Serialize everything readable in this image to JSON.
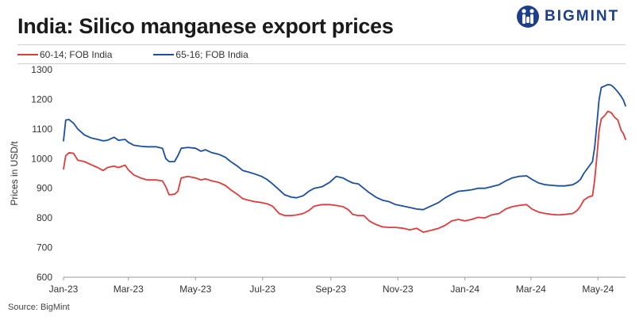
{
  "header": {
    "title": "India: Silico manganese export prices"
  },
  "logo": {
    "text": "BIGMINT",
    "color": "#1d3f8a"
  },
  "source": "Source: BigMint",
  "chart_data": {
    "type": "line",
    "title": "India: Silico manganese export prices",
    "xlabel": "",
    "ylabel": "Prices in USD/t",
    "ylim": [
      600,
      1300
    ],
    "yticks": [
      600,
      700,
      800,
      900,
      1000,
      1100,
      1200,
      1300
    ],
    "xlim": [
      "2023-01-01",
      "2024-05-26"
    ],
    "xticks": [
      {
        "date": "2023-01-01",
        "label": "Jan-23"
      },
      {
        "date": "2023-03-01",
        "label": "Mar-23"
      },
      {
        "date": "2023-05-01",
        "label": "May-23"
      },
      {
        "date": "2023-07-01",
        "label": "Jul-23"
      },
      {
        "date": "2023-09-01",
        "label": "Sep-23"
      },
      {
        "date": "2023-11-01",
        "label": "Nov-23"
      },
      {
        "date": "2024-01-01",
        "label": "Jan-24"
      },
      {
        "date": "2024-03-01",
        "label": "Mar-24"
      },
      {
        "date": "2024-05-01",
        "label": "May-24"
      }
    ],
    "grid": false,
    "legend_position": "top-left",
    "series": [
      {
        "name": "60-14; FOB India",
        "color": "#e03c3c",
        "points": [
          [
            "2023-01-01",
            965
          ],
          [
            "2023-01-03",
            1010
          ],
          [
            "2023-01-06",
            1020
          ],
          [
            "2023-01-10",
            1018
          ],
          [
            "2023-01-14",
            995
          ],
          [
            "2023-01-20",
            990
          ],
          [
            "2023-01-26",
            980
          ],
          [
            "2023-02-01",
            970
          ],
          [
            "2023-02-06",
            960
          ],
          [
            "2023-02-10",
            970
          ],
          [
            "2023-02-16",
            975
          ],
          [
            "2023-02-20",
            970
          ],
          [
            "2023-02-26",
            978
          ],
          [
            "2023-03-01",
            962
          ],
          [
            "2023-03-06",
            945
          ],
          [
            "2023-03-12",
            935
          ],
          [
            "2023-03-18",
            928
          ],
          [
            "2023-03-26",
            928
          ],
          [
            "2023-04-01",
            925
          ],
          [
            "2023-04-04",
            905
          ],
          [
            "2023-04-07",
            878
          ],
          [
            "2023-04-12",
            880
          ],
          [
            "2023-04-15",
            890
          ],
          [
            "2023-04-18",
            935
          ],
          [
            "2023-04-24",
            940
          ],
          [
            "2023-05-01",
            935
          ],
          [
            "2023-05-06",
            928
          ],
          [
            "2023-05-10",
            932
          ],
          [
            "2023-05-16",
            925
          ],
          [
            "2023-05-22",
            920
          ],
          [
            "2023-05-28",
            910
          ],
          [
            "2023-06-02",
            895
          ],
          [
            "2023-06-08",
            880
          ],
          [
            "2023-06-13",
            865
          ],
          [
            "2023-06-18",
            860
          ],
          [
            "2023-06-24",
            855
          ],
          [
            "2023-06-30",
            852
          ],
          [
            "2023-07-05",
            848
          ],
          [
            "2023-07-10",
            840
          ],
          [
            "2023-07-16",
            815
          ],
          [
            "2023-07-21",
            808
          ],
          [
            "2023-07-27",
            808
          ],
          [
            "2023-08-01",
            810
          ],
          [
            "2023-08-07",
            815
          ],
          [
            "2023-08-12",
            825
          ],
          [
            "2023-08-17",
            840
          ],
          [
            "2023-08-24",
            845
          ],
          [
            "2023-08-31",
            845
          ],
          [
            "2023-09-06",
            842
          ],
          [
            "2023-09-12",
            838
          ],
          [
            "2023-09-17",
            828
          ],
          [
            "2023-09-21",
            812
          ],
          [
            "2023-09-26",
            808
          ],
          [
            "2023-10-01",
            808
          ],
          [
            "2023-10-06",
            790
          ],
          [
            "2023-10-12",
            778
          ],
          [
            "2023-10-18",
            770
          ],
          [
            "2023-10-24",
            768
          ],
          [
            "2023-10-30",
            768
          ],
          [
            "2023-11-06",
            765
          ],
          [
            "2023-11-12",
            760
          ],
          [
            "2023-11-18",
            765
          ],
          [
            "2023-11-24",
            752
          ],
          [
            "2023-12-01",
            758
          ],
          [
            "2023-12-08",
            765
          ],
          [
            "2023-12-14",
            775
          ],
          [
            "2023-12-20",
            790
          ],
          [
            "2023-12-26",
            795
          ],
          [
            "2024-01-01",
            790
          ],
          [
            "2024-01-07",
            795
          ],
          [
            "2024-01-13",
            802
          ],
          [
            "2024-01-19",
            800
          ],
          [
            "2024-01-25",
            810
          ],
          [
            "2024-02-01",
            815
          ],
          [
            "2024-02-07",
            830
          ],
          [
            "2024-02-13",
            838
          ],
          [
            "2024-02-19",
            842
          ],
          [
            "2024-02-26",
            845
          ],
          [
            "2024-03-02",
            830
          ],
          [
            "2024-03-08",
            820
          ],
          [
            "2024-03-14",
            815
          ],
          [
            "2024-03-20",
            812
          ],
          [
            "2024-03-26",
            810
          ],
          [
            "2024-04-01",
            812
          ],
          [
            "2024-04-08",
            815
          ],
          [
            "2024-04-12",
            825
          ],
          [
            "2024-04-15",
            840
          ],
          [
            "2024-04-18",
            860
          ],
          [
            "2024-04-22",
            870
          ],
          [
            "2024-04-26",
            875
          ],
          [
            "2024-04-28",
            930
          ],
          [
            "2024-04-30",
            1010
          ],
          [
            "2024-05-02",
            1095
          ],
          [
            "2024-05-04",
            1135
          ],
          [
            "2024-05-07",
            1145
          ],
          [
            "2024-05-10",
            1160
          ],
          [
            "2024-05-13",
            1155
          ],
          [
            "2024-05-16",
            1140
          ],
          [
            "2024-05-19",
            1130
          ],
          [
            "2024-05-22",
            1095
          ],
          [
            "2024-05-24",
            1085
          ],
          [
            "2024-05-26",
            1065
          ]
        ]
      },
      {
        "name": "65-16; FOB India",
        "color": "#1b4fa0",
        "points": [
          [
            "2023-01-01",
            1060
          ],
          [
            "2023-01-03",
            1130
          ],
          [
            "2023-01-06",
            1132
          ],
          [
            "2023-01-10",
            1120
          ],
          [
            "2023-01-14",
            1100
          ],
          [
            "2023-01-20",
            1080
          ],
          [
            "2023-01-26",
            1070
          ],
          [
            "2023-02-01",
            1065
          ],
          [
            "2023-02-06",
            1060
          ],
          [
            "2023-02-10",
            1062
          ],
          [
            "2023-02-16",
            1072
          ],
          [
            "2023-02-20",
            1062
          ],
          [
            "2023-02-26",
            1065
          ],
          [
            "2023-03-01",
            1055
          ],
          [
            "2023-03-06",
            1045
          ],
          [
            "2023-03-12",
            1042
          ],
          [
            "2023-03-18",
            1040
          ],
          [
            "2023-03-26",
            1040
          ],
          [
            "2023-04-01",
            1035
          ],
          [
            "2023-04-04",
            1000
          ],
          [
            "2023-04-07",
            990
          ],
          [
            "2023-04-12",
            990
          ],
          [
            "2023-04-15",
            1010
          ],
          [
            "2023-04-18",
            1035
          ],
          [
            "2023-04-24",
            1038
          ],
          [
            "2023-05-01",
            1035
          ],
          [
            "2023-05-06",
            1025
          ],
          [
            "2023-05-10",
            1030
          ],
          [
            "2023-05-16",
            1020
          ],
          [
            "2023-05-22",
            1015
          ],
          [
            "2023-05-28",
            1005
          ],
          [
            "2023-06-02",
            990
          ],
          [
            "2023-06-08",
            975
          ],
          [
            "2023-06-13",
            960
          ],
          [
            "2023-06-18",
            955
          ],
          [
            "2023-06-24",
            948
          ],
          [
            "2023-06-30",
            940
          ],
          [
            "2023-07-05",
            930
          ],
          [
            "2023-07-10",
            915
          ],
          [
            "2023-07-16",
            895
          ],
          [
            "2023-07-21",
            878
          ],
          [
            "2023-07-27",
            870
          ],
          [
            "2023-08-01",
            868
          ],
          [
            "2023-08-07",
            875
          ],
          [
            "2023-08-12",
            890
          ],
          [
            "2023-08-17",
            900
          ],
          [
            "2023-08-24",
            905
          ],
          [
            "2023-08-31",
            920
          ],
          [
            "2023-09-06",
            940
          ],
          [
            "2023-09-12",
            935
          ],
          [
            "2023-09-17",
            925
          ],
          [
            "2023-09-21",
            918
          ],
          [
            "2023-09-26",
            915
          ],
          [
            "2023-10-01",
            900
          ],
          [
            "2023-10-06",
            885
          ],
          [
            "2023-10-12",
            870
          ],
          [
            "2023-10-18",
            860
          ],
          [
            "2023-10-24",
            855
          ],
          [
            "2023-10-30",
            845
          ],
          [
            "2023-11-06",
            840
          ],
          [
            "2023-11-12",
            835
          ],
          [
            "2023-11-18",
            830
          ],
          [
            "2023-11-24",
            828
          ],
          [
            "2023-12-01",
            840
          ],
          [
            "2023-12-08",
            852
          ],
          [
            "2023-12-14",
            868
          ],
          [
            "2023-12-20",
            880
          ],
          [
            "2023-12-26",
            890
          ],
          [
            "2024-01-01",
            892
          ],
          [
            "2024-01-07",
            895
          ],
          [
            "2024-01-13",
            900
          ],
          [
            "2024-01-19",
            900
          ],
          [
            "2024-01-25",
            905
          ],
          [
            "2024-02-01",
            912
          ],
          [
            "2024-02-07",
            925
          ],
          [
            "2024-02-13",
            935
          ],
          [
            "2024-02-19",
            940
          ],
          [
            "2024-02-26",
            942
          ],
          [
            "2024-03-02",
            930
          ],
          [
            "2024-03-08",
            918
          ],
          [
            "2024-03-14",
            912
          ],
          [
            "2024-03-20",
            910
          ],
          [
            "2024-03-26",
            908
          ],
          [
            "2024-04-01",
            908
          ],
          [
            "2024-04-08",
            912
          ],
          [
            "2024-04-12",
            920
          ],
          [
            "2024-04-15",
            930
          ],
          [
            "2024-04-18",
            950
          ],
          [
            "2024-04-22",
            970
          ],
          [
            "2024-04-26",
            990
          ],
          [
            "2024-04-28",
            1040
          ],
          [
            "2024-04-30",
            1120
          ],
          [
            "2024-05-02",
            1200
          ],
          [
            "2024-05-04",
            1240
          ],
          [
            "2024-05-07",
            1245
          ],
          [
            "2024-05-10",
            1250
          ],
          [
            "2024-05-13",
            1248
          ],
          [
            "2024-05-16",
            1238
          ],
          [
            "2024-05-19",
            1225
          ],
          [
            "2024-05-22",
            1210
          ],
          [
            "2024-05-24",
            1198
          ],
          [
            "2024-05-26",
            1178
          ]
        ]
      }
    ]
  }
}
